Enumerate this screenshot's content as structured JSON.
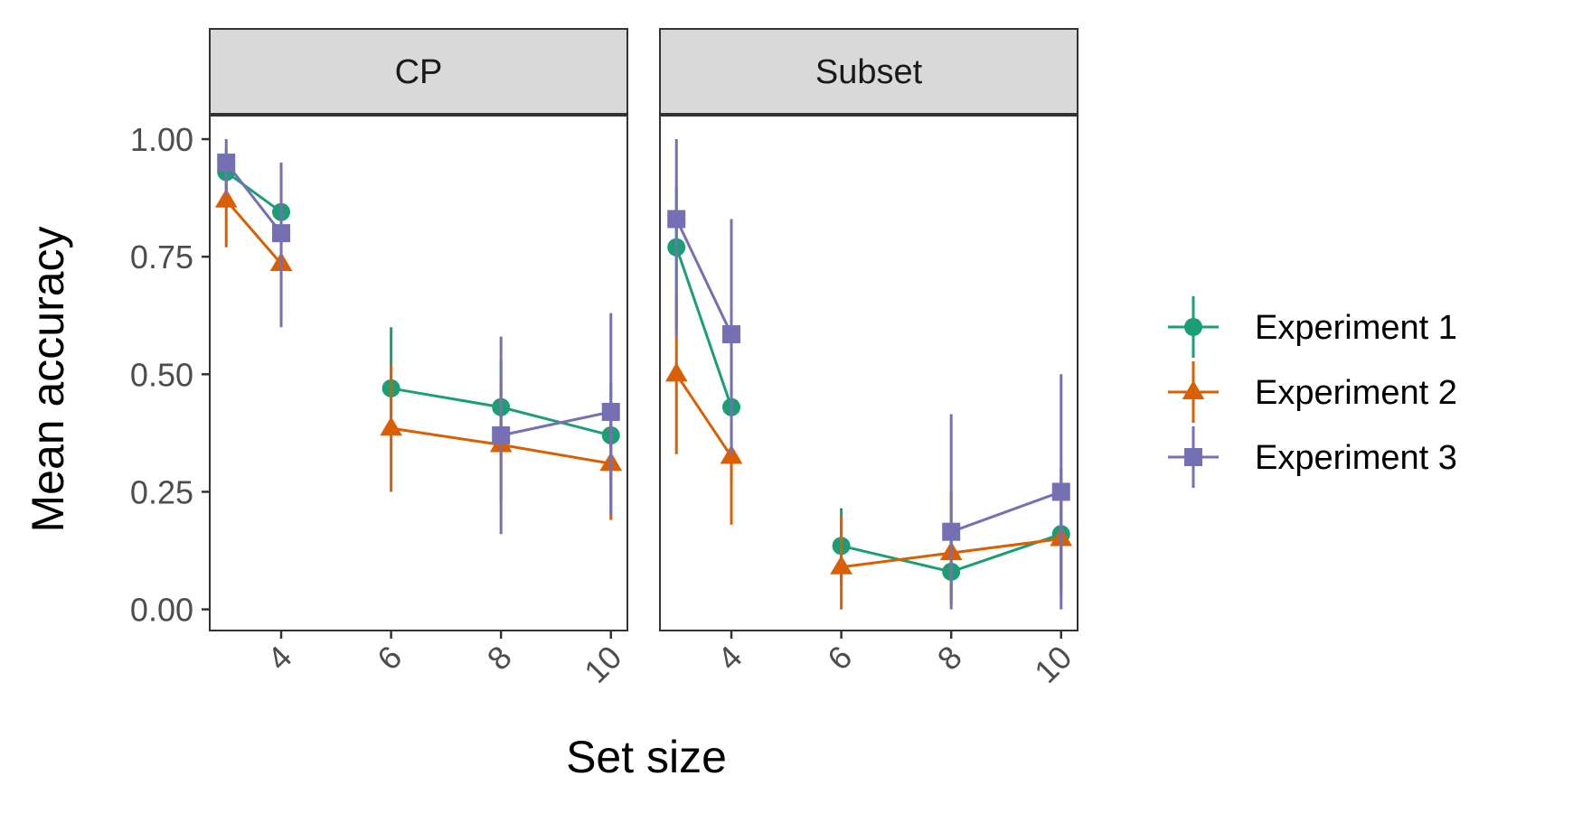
{
  "chart_data": {
    "type": "line",
    "xlabel": "Set size",
    "ylabel": "Mean accuracy",
    "xlim": [
      2.7,
      10.3
    ],
    "ylim": [
      -0.045,
      1.05
    ],
    "x_ticks": [
      4,
      6,
      8,
      10
    ],
    "x_tick_labels": [
      "4",
      "6",
      "8",
      "10"
    ],
    "y_ticks": [
      0,
      0.25,
      0.5,
      0.75,
      1.0
    ],
    "y_tick_labels": [
      "0.00",
      "0.25",
      "0.50",
      "0.75",
      "1.00"
    ],
    "grid": false,
    "legend_position": "right",
    "series_styles": [
      {
        "name": "Experiment 1",
        "color": "#1b9e77",
        "marker": "circle"
      },
      {
        "name": "Experiment 2",
        "color": "#d95f02",
        "marker": "triangle"
      },
      {
        "name": "Experiment 3",
        "color": "#7570b3",
        "marker": "square"
      }
    ],
    "panels": [
      {
        "title": "CP",
        "series": [
          {
            "name": "Experiment 1",
            "segments": [
              [
                {
                  "x": 3,
                  "y": 0.93,
                  "lo": 0.86,
                  "hi": 0.98
                },
                {
                  "x": 4,
                  "y": 0.845,
                  "lo": 0.76,
                  "hi": 0.93
                }
              ],
              [
                {
                  "x": 6,
                  "y": 0.47,
                  "lo": 0.37,
                  "hi": 0.6
                },
                {
                  "x": 8,
                  "y": 0.43,
                  "lo": 0.33,
                  "hi": 0.53
                },
                {
                  "x": 10,
                  "y": 0.37,
                  "lo": 0.27,
                  "hi": 0.48
                }
              ]
            ]
          },
          {
            "name": "Experiment 2",
            "segments": [
              [
                {
                  "x": 3,
                  "y": 0.87,
                  "lo": 0.77,
                  "hi": 0.95
                },
                {
                  "x": 4,
                  "y": 0.735,
                  "lo": 0.62,
                  "hi": 0.85
                }
              ],
              [
                {
                  "x": 6,
                  "y": 0.385,
                  "lo": 0.25,
                  "hi": 0.52
                },
                {
                  "x": 8,
                  "y": 0.35,
                  "lo": 0.23,
                  "hi": 0.48
                },
                {
                  "x": 10,
                  "y": 0.31,
                  "lo": 0.19,
                  "hi": 0.44
                }
              ]
            ]
          },
          {
            "name": "Experiment 3",
            "segments": [
              [
                {
                  "x": 3,
                  "y": 0.95,
                  "lo": 0.88,
                  "hi": 1.0
                },
                {
                  "x": 4,
                  "y": 0.8,
                  "lo": 0.6,
                  "hi": 0.95
                }
              ],
              [
                {
                  "x": 8,
                  "y": 0.37,
                  "lo": 0.16,
                  "hi": 0.58
                },
                {
                  "x": 10,
                  "y": 0.42,
                  "lo": 0.2,
                  "hi": 0.63
                }
              ]
            ]
          }
        ]
      },
      {
        "title": "Subset",
        "series": [
          {
            "name": "Experiment 1",
            "segments": [
              [
                {
                  "x": 3,
                  "y": 0.77,
                  "lo": 0.6,
                  "hi": 0.9
                },
                {
                  "x": 4,
                  "y": 0.43,
                  "lo": 0.27,
                  "hi": 0.6
                }
              ],
              [
                {
                  "x": 6,
                  "y": 0.135,
                  "lo": 0.05,
                  "hi": 0.215
                },
                {
                  "x": 8,
                  "y": 0.08,
                  "lo": 0.01,
                  "hi": 0.17
                },
                {
                  "x": 10,
                  "y": 0.16,
                  "lo": 0.05,
                  "hi": 0.28
                }
              ]
            ]
          },
          {
            "name": "Experiment 2",
            "segments": [
              [
                {
                  "x": 3,
                  "y": 0.5,
                  "lo": 0.33,
                  "hi": 0.67
                },
                {
                  "x": 4,
                  "y": 0.325,
                  "lo": 0.18,
                  "hi": 0.5
                }
              ],
              [
                {
                  "x": 6,
                  "y": 0.09,
                  "lo": 0.0,
                  "hi": 0.2
                },
                {
                  "x": 8,
                  "y": 0.12,
                  "lo": 0.02,
                  "hi": 0.25
                },
                {
                  "x": 10,
                  "y": 0.15,
                  "lo": 0.03,
                  "hi": 0.3
                }
              ]
            ]
          },
          {
            "name": "Experiment 3",
            "segments": [
              [
                {
                  "x": 3,
                  "y": 0.83,
                  "lo": 0.58,
                  "hi": 1.0
                },
                {
                  "x": 4,
                  "y": 0.585,
                  "lo": 0.33,
                  "hi": 0.83
                }
              ],
              [
                {
                  "x": 8,
                  "y": 0.165,
                  "lo": 0.0,
                  "hi": 0.415
                },
                {
                  "x": 10,
                  "y": 0.25,
                  "lo": 0.0,
                  "hi": 0.5
                }
              ]
            ]
          }
        ]
      }
    ]
  }
}
